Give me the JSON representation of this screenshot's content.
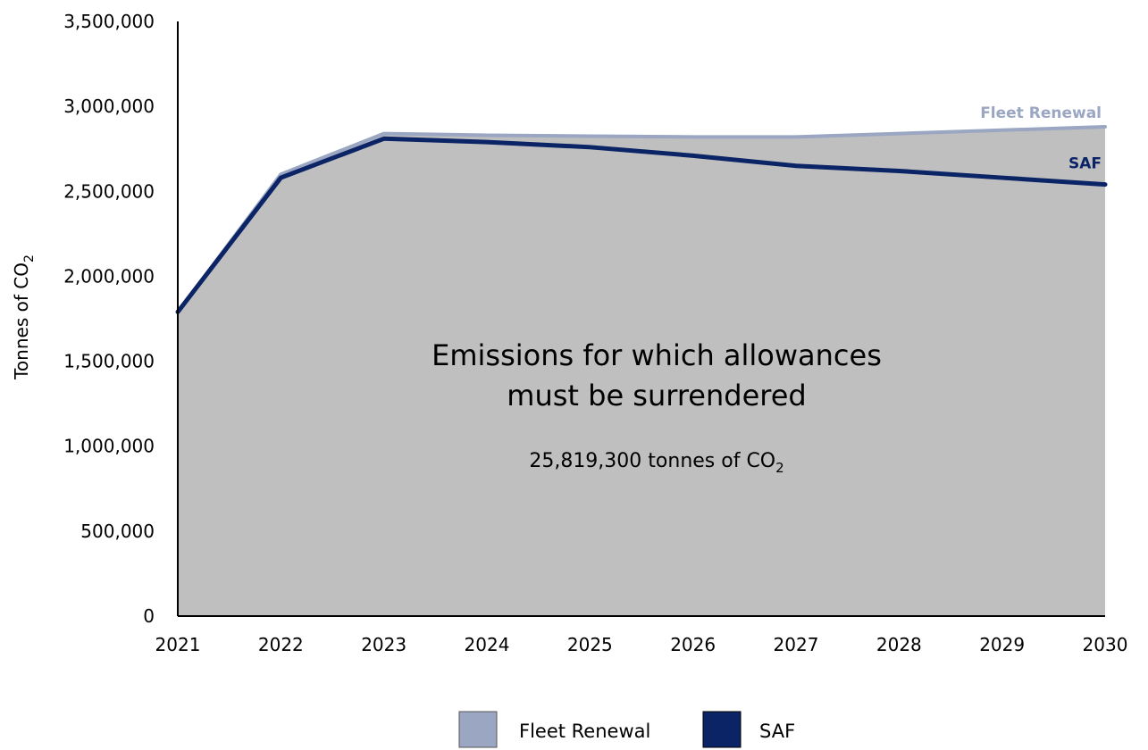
{
  "chart_data": {
    "type": "area",
    "x": [
      2021,
      2022,
      2023,
      2024,
      2025,
      2026,
      2027,
      2028,
      2029,
      2030
    ],
    "x_tick_labels": [
      "2021",
      "2022",
      "2023",
      "2024",
      "2025",
      "2026",
      "2027",
      "2028",
      "2029",
      "2030"
    ],
    "ylim": [
      0,
      3500000
    ],
    "y_ticks": [
      0,
      500000,
      1000000,
      1500000,
      2000000,
      2500000,
      3000000,
      3500000
    ],
    "y_tick_labels": [
      "0",
      "500,000",
      "1,000,000",
      "1,500,000",
      "2,000,000",
      "2,500,000",
      "3,000,000",
      "3,500,000"
    ],
    "ylabel": {
      "text": "Tonnes of CO",
      "subscript": "2"
    },
    "xlabel": "",
    "grid": false,
    "legend_position": "bottom",
    "series": [
      {
        "name": "Fleet Renewal",
        "color": "#9aa6c2",
        "values": [
          1790000,
          2600000,
          2840000,
          2830000,
          2825000,
          2820000,
          2820000,
          2840000,
          2860000,
          2880000
        ]
      },
      {
        "name": "SAF",
        "color": "#0b2466",
        "values": [
          1790000,
          2580000,
          2810000,
          2790000,
          2760000,
          2710000,
          2650000,
          2620000,
          2580000,
          2540000
        ]
      }
    ],
    "fill_color": "#bfbfbf",
    "annotation": {
      "line1": "Emissions for which allowances",
      "line2": "must be surrendered",
      "total_text": "25,819,300 tonnes of CO",
      "total_subscript": "2"
    },
    "end_labels": [
      "Fleet Renewal",
      "SAF"
    ]
  }
}
